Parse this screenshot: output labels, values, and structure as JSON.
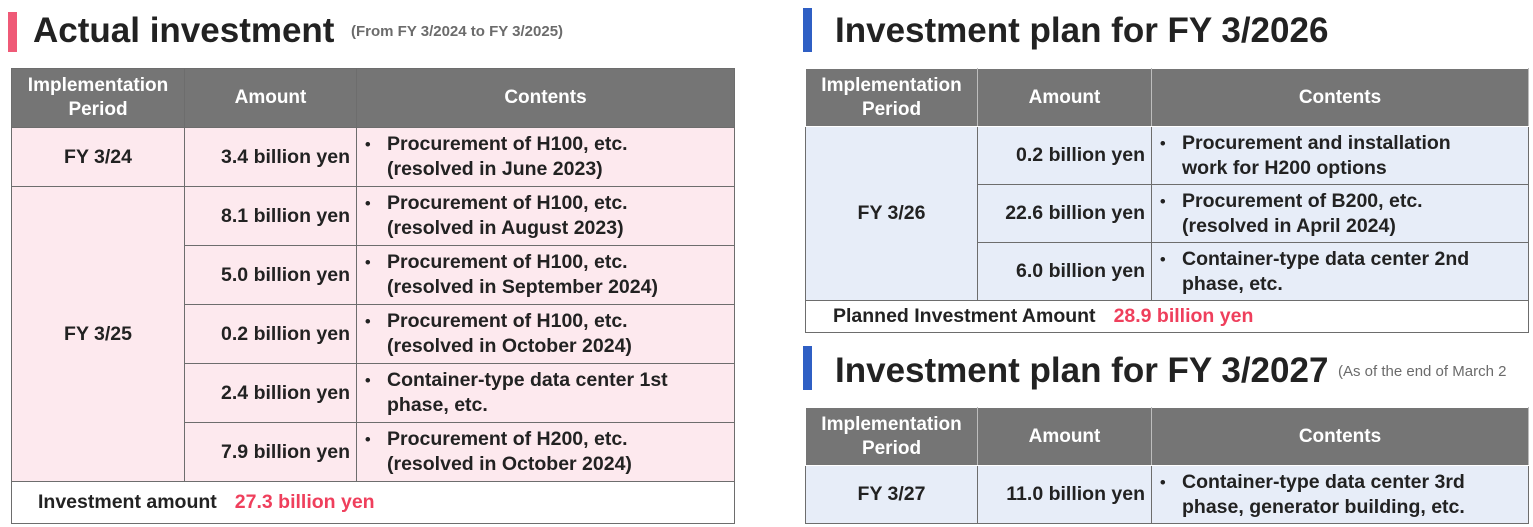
{
  "left": {
    "title": "Actual investment",
    "subtitle": "(From FY 3/2024 to FY 3/2025)",
    "accent_color": "#ef5a77",
    "headers": [
      "Implementation Period",
      "Amount",
      "Contents"
    ],
    "groups": [
      {
        "period": "FY 3/24",
        "rows": [
          {
            "amount": "3.4 billion yen",
            "contents": "Procurement of H100, etc.\n(resolved in June 2023)"
          }
        ]
      },
      {
        "period": "FY 3/25",
        "rows": [
          {
            "amount": "8.1 billion yen",
            "contents": "Procurement of H100, etc.\n(resolved in August 2023)"
          },
          {
            "amount": "5.0 billion yen",
            "contents": "Procurement of H100, etc.\n(resolved in September 2024)"
          },
          {
            "amount": "0.2 billion yen",
            "contents": "Procurement of H100, etc.\n(resolved in October 2024)"
          },
          {
            "amount": "2.4 billion yen",
            "contents": "Container-type data center 1st\nphase, etc."
          },
          {
            "amount": "7.9 billion yen",
            "contents": "Procurement of H200, etc.\n(resolved in October 2024)"
          }
        ]
      }
    ],
    "total_label": "Investment amount",
    "total_value": "27.3 billion yen"
  },
  "right_top": {
    "title": "Investment plan for FY 3/2026",
    "accent_color": "#2f5fc4",
    "headers": [
      "Implementation Period",
      "Amount",
      "Contents"
    ],
    "period": "FY 3/26",
    "rows": [
      {
        "amount": "0.2 billion yen",
        "contents": "Procurement and installation\nwork for H200 options"
      },
      {
        "amount": "22.6 billion yen",
        "contents": "Procurement of B200, etc.\n(resolved in April 2024)"
      },
      {
        "amount": "6.0 billion yen",
        "contents": "Container-type data center 2nd\nphase, etc."
      }
    ],
    "total_label": "Planned Investment Amount",
    "total_value": "28.9 billion yen"
  },
  "right_bottom": {
    "title": "Investment plan for FY 3/2027",
    "subtitle": "(As of the end of March 2",
    "accent_color": "#2f5fc4",
    "headers": [
      "Implementation Period",
      "Amount",
      "Contents"
    ],
    "period": "FY 3/27",
    "rows": [
      {
        "amount": "11.0 billion yen",
        "contents": "Container-type data center 3rd\nphase, generator building, etc."
      }
    ]
  },
  "bullet_glyph": "•"
}
